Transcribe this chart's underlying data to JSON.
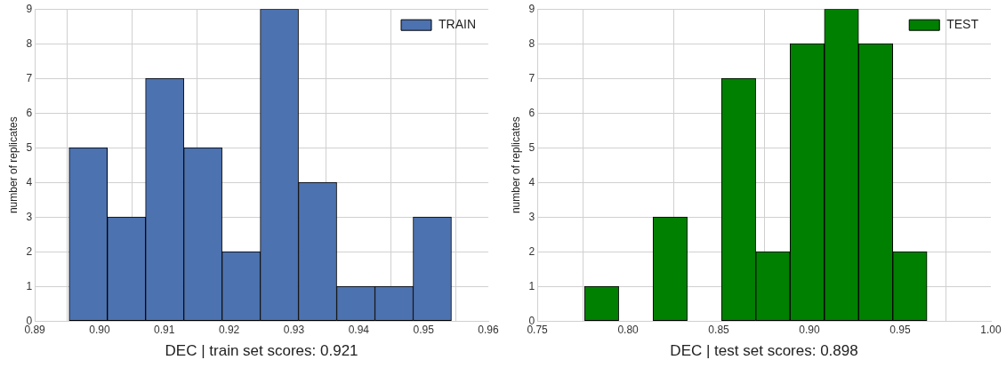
{
  "chart_data": [
    {
      "type": "histogram",
      "xlabel": "DEC | train set scores: 0.921",
      "ylabel": "number of replicates",
      "bins": [
        0.8953,
        0.9012,
        0.9071,
        0.913,
        0.9189,
        0.9248,
        0.9307,
        0.9366,
        0.9425,
        0.9484,
        0.9543
      ],
      "series": [
        {
          "name": "TRAIN",
          "color": "#4c72b0",
          "values": [
            5,
            3,
            7,
            5,
            2,
            9,
            4,
            1,
            1,
            3
          ]
        }
      ],
      "xlim": [
        0.89,
        0.96
      ],
      "xticks": [
        {
          "value": 0.89,
          "label": "0.89"
        },
        {
          "value": 0.9,
          "label": "0.90"
        },
        {
          "value": 0.91,
          "label": "0.91"
        },
        {
          "value": 0.92,
          "label": "0.92"
        },
        {
          "value": 0.93,
          "label": "0.93"
        },
        {
          "value": 0.94,
          "label": "0.94"
        },
        {
          "value": 0.95,
          "label": "0.95"
        },
        {
          "value": 0.96,
          "label": "0.96"
        }
      ],
      "ylim": [
        0,
        9
      ],
      "yticks": [
        0,
        1,
        2,
        3,
        4,
        5,
        6,
        7,
        8,
        9
      ],
      "grid": true,
      "legend": "top right"
    },
    {
      "type": "histogram",
      "xlabel": "DEC | test set scores: 0.898",
      "ylabel": "number of replicates",
      "bins": [
        0.776,
        0.7949,
        0.8138,
        0.8326,
        0.8515,
        0.8704,
        0.8893,
        0.9082,
        0.9271,
        0.9459,
        0.9648
      ],
      "series": [
        {
          "name": "TEST",
          "color": "#008000",
          "values": [
            1,
            0,
            3,
            0,
            7,
            2,
            8,
            9,
            8,
            2
          ]
        }
      ],
      "xlim": [
        0.75,
        1.0
      ],
      "xticks": [
        {
          "value": 0.75,
          "label": "0.75"
        },
        {
          "value": 0.8,
          "label": "0.80"
        },
        {
          "value": 0.85,
          "label": "0.85"
        },
        {
          "value": 0.9,
          "label": "0.90"
        },
        {
          "value": 0.95,
          "label": "0.95"
        },
        {
          "value": 1.0,
          "label": "1.00"
        }
      ],
      "ylim": [
        0,
        9
      ],
      "yticks": [
        0,
        1,
        2,
        3,
        4,
        5,
        6,
        7,
        8,
        9
      ],
      "grid": true,
      "legend": "top right"
    }
  ]
}
